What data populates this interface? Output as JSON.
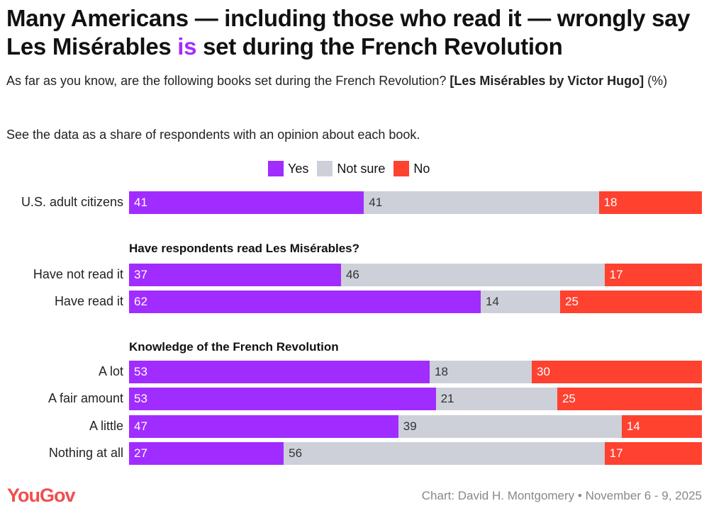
{
  "title_parts": [
    "Many Americans — including those who read it — wrongly say Les Misérables ",
    "is",
    " set during the French Revolution"
  ],
  "subtitle": {
    "text": "As far as you know, are the following books set during the French Revolution? ",
    "bold": "[Les Misérables by Victor Hugo]",
    "suffix": " (%)"
  },
  "note": "See the data as a share of respondents with an opinion about each book.",
  "colors": {
    "Yes": "#A12CFF",
    "Not sure": "#CDD0D8",
    "No": "#FF4130"
  },
  "chart_data": {
    "type": "bar",
    "stacked": true,
    "orientation": "horizontal",
    "legend": [
      "Yes",
      "Not sure",
      "No"
    ],
    "legend_position": "top",
    "groups": [
      {
        "label": "",
        "rows": [
          {
            "category": "U.S. adult citizens",
            "values": [
              41,
              41,
              18
            ]
          }
        ]
      },
      {
        "label": "Have respondents read Les Misérables?",
        "rows": [
          {
            "category": "Have not read it",
            "values": [
              37,
              46,
              17
            ]
          },
          {
            "category": "Have read it",
            "values": [
              62,
              14,
              25
            ]
          }
        ]
      },
      {
        "label": "Knowledge of the French Revolution",
        "rows": [
          {
            "category": "A lot",
            "values": [
              53,
              18,
              30
            ]
          },
          {
            "category": "A fair amount",
            "values": [
              53,
              21,
              25
            ]
          },
          {
            "category": "A little",
            "values": [
              47,
              39,
              14
            ]
          },
          {
            "category": "Nothing at all",
            "values": [
              27,
              56,
              17
            ]
          }
        ]
      }
    ]
  },
  "footer": {
    "logo": "YouGov",
    "credit": "Chart: David H. Montgomery • November 6 - 9, 2025"
  }
}
